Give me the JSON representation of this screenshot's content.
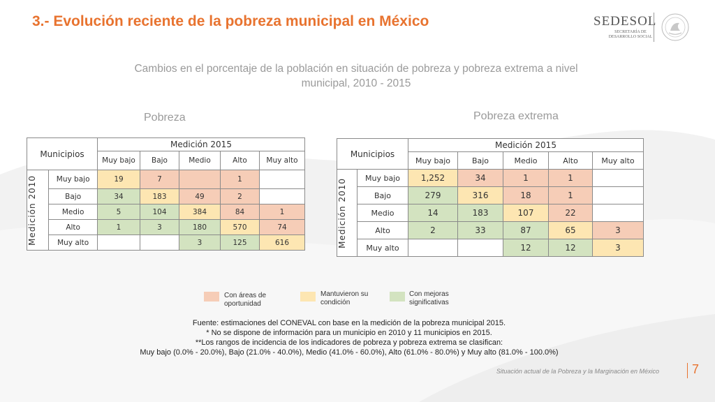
{
  "title": "3.- Evolución reciente de la pobreza municipal en México",
  "logo": {
    "brand": "SEDESOL",
    "sub": "SECRETARÍA DE DESARROLLO SOCIAL"
  },
  "subtitle": "Cambios en el porcentaje de la población en situación de pobreza y pobreza extrema a nivel municipal, 2010 - 2015",
  "pobreza": {
    "label": "Pobreza",
    "corner": "Municipios",
    "medicion_2015": "Medición 2015",
    "medicion_2010": "Medición 2010",
    "cols": [
      "Muy bajo",
      "Bajo",
      "Medio",
      "Alto",
      "Muy alto"
    ],
    "rows": [
      {
        "label": "Muy bajo",
        "cells": [
          "19",
          "7",
          "",
          "1",
          ""
        ]
      },
      {
        "label": "Bajo",
        "cells": [
          "34",
          "183",
          "49",
          "2",
          ""
        ]
      },
      {
        "label": "Medio",
        "cells": [
          "5",
          "104",
          "384",
          "84",
          "1"
        ]
      },
      {
        "label": "Alto",
        "cells": [
          "1",
          "3",
          "180",
          "570",
          "74"
        ]
      },
      {
        "label": "Muy alto",
        "cells": [
          "",
          "",
          "3",
          "125",
          "616"
        ]
      }
    ]
  },
  "extrema": {
    "label": "Pobreza extrema",
    "corner": "Municipios",
    "medicion_2015": "Medición 2015",
    "medicion_2010": "Medición 2010",
    "cols": [
      "Muy bajo",
      "Bajo",
      "Medio",
      "Alto",
      "Muy alto"
    ],
    "rows": [
      {
        "label": "Muy bajo",
        "cells": [
          "1,252",
          "34",
          "1",
          "1",
          ""
        ]
      },
      {
        "label": "Bajo",
        "cells": [
          "279",
          "316",
          "18",
          "1",
          ""
        ]
      },
      {
        "label": "Medio",
        "cells": [
          "14",
          "183",
          "107",
          "22",
          ""
        ]
      },
      {
        "label": "Alto",
        "cells": [
          "2",
          "33",
          "87",
          "65",
          "3"
        ]
      },
      {
        "label": "Muy alto",
        "cells": [
          "",
          "",
          "12",
          "12",
          "3"
        ]
      }
    ]
  },
  "legend": {
    "oportunidad": "Con áreas de oportunidad",
    "mantuvieron": "Mantuvieron su condición",
    "mejoras": "Con mejoras significativas"
  },
  "colors": {
    "oportunidad": "#f6cdb7",
    "mantuvieron": "#fde6b2",
    "mejoras": "#d3e3c0",
    "accent": "#e8732f"
  },
  "source": {
    "line1": "Fuente: estimaciones del CONEVAL con base en la medición de la pobreza municipal 2015.",
    "line2": "* No se dispone de información para un municipio en 2010 y 11 municipios en 2015.",
    "line3": "**Los rangos de incidencia de los indicadores de pobreza y pobreza extrema se clasifican:",
    "line4": "Muy bajo (0.0% - 20.0%), Bajo (21.0% - 40.0%), Medio (41.0% - 60.0%), Alto (61.0% - 80.0%) y Muy alto (81.0% - 100.0%)"
  },
  "footer": "Situación actual de la Pobreza y la Marginación en México",
  "page_number": "7"
}
